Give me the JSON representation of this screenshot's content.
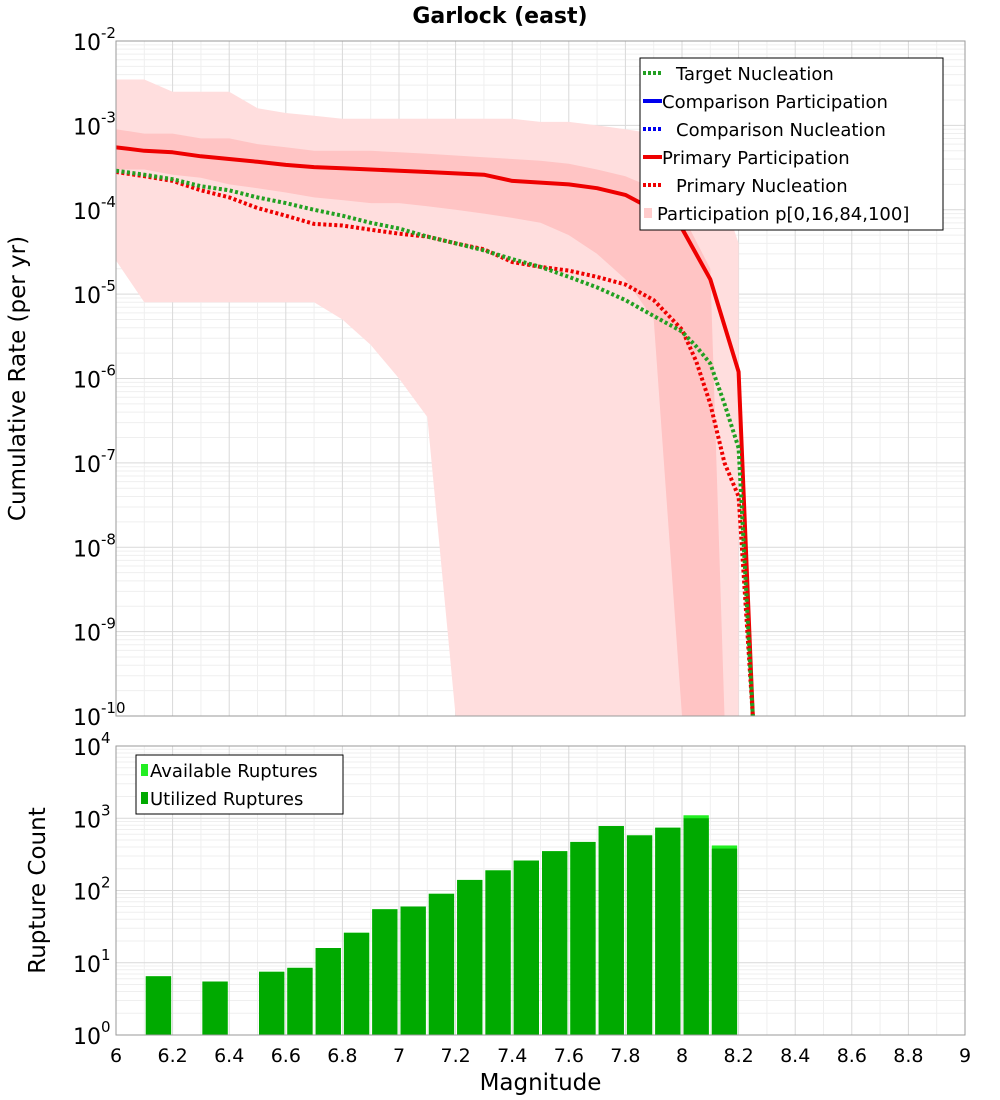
{
  "chart_data": [
    {
      "type": "line",
      "title": "Garlock (east)",
      "xlabel": "",
      "ylabel": "Cumulative Rate (per yr)",
      "xlim": [
        6,
        9
      ],
      "ylim": [
        1e-10,
        0.01
      ],
      "yscale": "log",
      "grid": true,
      "legend_position": "top-right",
      "y_ticks": [
        {
          "base": "10",
          "exp": "-10"
        },
        {
          "base": "10",
          "exp": "-9"
        },
        {
          "base": "10",
          "exp": "-8"
        },
        {
          "base": "10",
          "exp": "-7"
        },
        {
          "base": "10",
          "exp": "-6"
        },
        {
          "base": "10",
          "exp": "-5"
        },
        {
          "base": "10",
          "exp": "-4"
        },
        {
          "base": "10",
          "exp": "-3"
        },
        {
          "base": "10",
          "exp": "-2"
        }
      ],
      "legend": [
        {
          "label": "Target Nucleation",
          "color": "#22a022",
          "style": "dotted"
        },
        {
          "label": "Comparison Participation",
          "color": "#0000ee",
          "style": "solid"
        },
        {
          "label": "Comparison Nucleation",
          "color": "#0000ee",
          "style": "dotted"
        },
        {
          "label": "Primary Participation",
          "color": "#ee0000",
          "style": "solid"
        },
        {
          "label": "Primary Nucleation",
          "color": "#ee0000",
          "style": "dotted"
        },
        {
          "label": "Participation p[0,16,84,100]",
          "color": "#ffcccc",
          "style": "band"
        }
      ],
      "bands": [
        {
          "name": "p0-p100",
          "color": "#ffdede",
          "x": [
            6.0,
            6.1,
            6.2,
            6.3,
            6.4,
            6.5,
            6.6,
            6.7,
            6.8,
            6.9,
            7.0,
            7.1,
            7.2,
            7.3,
            7.4,
            7.5,
            7.6,
            7.7,
            7.8,
            7.9,
            8.0,
            8.1,
            8.2
          ],
          "upper": [
            0.0035,
            0.0035,
            0.0025,
            0.0025,
            0.0025,
            0.0016,
            0.0014,
            0.0013,
            0.0012,
            0.0012,
            0.0012,
            0.0012,
            0.0012,
            0.0012,
            0.0012,
            0.0011,
            0.0011,
            0.001,
            0.0009,
            0.0008,
            0.0007,
            0.0004,
            4e-05
          ],
          "lower": [
            2.5e-05,
            8e-06,
            8e-06,
            8e-06,
            8e-06,
            8e-06,
            8e-06,
            8e-06,
            5e-06,
            2.5e-06,
            1e-06,
            3.5e-07,
            1e-10,
            1e-10,
            1e-10,
            1e-10,
            1e-10,
            1e-10,
            1e-10,
            1e-10,
            1e-10,
            1e-10,
            1e-10
          ]
        },
        {
          "name": "p16-p84",
          "color": "#ffc4c4",
          "x": [
            6.0,
            6.1,
            6.2,
            6.3,
            6.4,
            6.5,
            6.6,
            6.7,
            6.8,
            6.9,
            7.0,
            7.1,
            7.2,
            7.3,
            7.4,
            7.5,
            7.6,
            7.7,
            7.8,
            7.9,
            8.0,
            8.1,
            8.15
          ],
          "upper": [
            0.0009,
            0.0008,
            0.0008,
            0.0007,
            0.0007,
            0.0006,
            0.00055,
            0.0005,
            0.0005,
            0.0005,
            0.00048,
            0.00046,
            0.00044,
            0.00042,
            0.0004,
            0.00038,
            0.00035,
            0.0003,
            0.00025,
            0.00018,
            9e-05,
            2e-05,
            1e-10
          ],
          "lower": [
            0.0003,
            0.0003,
            0.00026,
            0.00024,
            0.0002,
            0.00018,
            0.00016,
            0.00014,
            0.00013,
            0.00012,
            0.00012,
            0.00011,
            0.0001,
            9e-05,
            8e-05,
            7e-05,
            5e-05,
            3e-05,
            1.5e-05,
            5e-06,
            1e-10,
            1e-10,
            1e-10
          ]
        }
      ],
      "series": [
        {
          "name": "Primary Participation",
          "color": "#ee0000",
          "style": "solid",
          "x": [
            6.0,
            6.1,
            6.2,
            6.3,
            6.4,
            6.5,
            6.6,
            6.7,
            6.8,
            6.9,
            7.0,
            7.1,
            7.2,
            7.3,
            7.4,
            7.5,
            7.6,
            7.7,
            7.8,
            7.9,
            8.0,
            8.1,
            8.2,
            8.25
          ],
          "y": [
            0.00055,
            0.0005,
            0.00048,
            0.00043,
            0.0004,
            0.00037,
            0.00034,
            0.00032,
            0.00031,
            0.0003,
            0.00029,
            0.00028,
            0.00027,
            0.00026,
            0.00022,
            0.00021,
            0.0002,
            0.00018,
            0.00015,
            0.0001,
            6e-05,
            1.5e-05,
            1.2e-06,
            1e-10
          ]
        },
        {
          "name": "Primary Nucleation",
          "color": "#ee0000",
          "style": "dotted",
          "x": [
            6.0,
            6.1,
            6.2,
            6.3,
            6.4,
            6.5,
            6.6,
            6.7,
            6.8,
            6.9,
            7.0,
            7.1,
            7.2,
            7.3,
            7.4,
            7.5,
            7.6,
            7.7,
            7.8,
            7.9,
            8.0,
            8.05,
            8.1,
            8.15,
            8.2,
            8.25
          ],
          "y": [
            0.00028,
            0.00025,
            0.00022,
            0.00017,
            0.00014,
            0.000105,
            8.5e-05,
            6.8e-05,
            6.5e-05,
            5.8e-05,
            5.2e-05,
            4.8e-05,
            4e-05,
            3.4e-05,
            2.4e-05,
            2.1e-05,
            1.9e-05,
            1.6e-05,
            1.3e-05,
            8.5e-06,
            3.8e-06,
            1.6e-06,
            5e-07,
            1e-07,
            4e-08,
            1e-10
          ]
        },
        {
          "name": "Target Nucleation",
          "color": "#22a022",
          "style": "dotted",
          "x": [
            6.0,
            6.1,
            6.2,
            6.3,
            6.4,
            6.5,
            6.6,
            6.7,
            6.8,
            6.9,
            7.0,
            7.1,
            7.2,
            7.3,
            7.4,
            7.5,
            7.6,
            7.7,
            7.8,
            7.9,
            8.0,
            8.05,
            8.1,
            8.15,
            8.2,
            8.25
          ],
          "y": [
            0.00029,
            0.00026,
            0.00023,
            0.00019,
            0.00017,
            0.00014,
            0.00012,
            0.0001,
            8.5e-05,
            7e-05,
            6e-05,
            4.8e-05,
            4e-05,
            3.3e-05,
            2.6e-05,
            2.1e-05,
            1.6e-05,
            1.2e-05,
            8.5e-06,
            5.5e-06,
            3.6e-06,
            2.4e-06,
            1.5e-06,
            5e-07,
            1.5e-07,
            1e-10
          ]
        }
      ]
    },
    {
      "type": "bar",
      "xlabel": "Magnitude",
      "ylabel": "Rupture Count",
      "xlim": [
        6,
        9
      ],
      "ylim": [
        1,
        10000
      ],
      "yscale": "log",
      "grid": true,
      "legend_position": "top-left",
      "x_ticks": [
        "6",
        "6.2",
        "6.4",
        "6.6",
        "6.8",
        "7",
        "7.2",
        "7.4",
        "7.6",
        "7.8",
        "8",
        "8.2",
        "8.4",
        "8.6",
        "8.8",
        "9"
      ],
      "y_ticks": [
        {
          "base": "10",
          "exp": "0"
        },
        {
          "base": "10",
          "exp": "1"
        },
        {
          "base": "10",
          "exp": "2"
        },
        {
          "base": "10",
          "exp": "3"
        },
        {
          "base": "10",
          "exp": "4"
        }
      ],
      "legend": [
        {
          "label": "Available Ruptures",
          "color": "#22ee22"
        },
        {
          "label": "Utilized Ruptures",
          "color": "#00aa00"
        }
      ],
      "bin_width": 0.1,
      "bins": [
        6.15,
        6.25,
        6.35,
        6.45,
        6.55,
        6.65,
        6.75,
        6.85,
        6.95,
        7.05,
        7.15,
        7.25,
        7.35,
        7.45,
        7.55,
        7.65,
        7.75,
        7.85,
        7.95,
        8.05,
        8.15
      ],
      "series": [
        {
          "name": "Available Ruptures",
          "color": "#22ee22",
          "values": [
            6.5,
            0,
            5.5,
            0,
            7.5,
            8.5,
            16,
            26,
            55,
            60,
            90,
            140,
            190,
            260,
            350,
            470,
            780,
            580,
            740,
            1100,
            420
          ]
        },
        {
          "name": "Utilized Ruptures",
          "color": "#00aa00",
          "values": [
            6.5,
            0,
            5.5,
            0,
            7.5,
            8.5,
            16,
            26,
            55,
            60,
            90,
            140,
            190,
            260,
            350,
            470,
            780,
            580,
            740,
            1000,
            380
          ]
        }
      ]
    }
  ]
}
